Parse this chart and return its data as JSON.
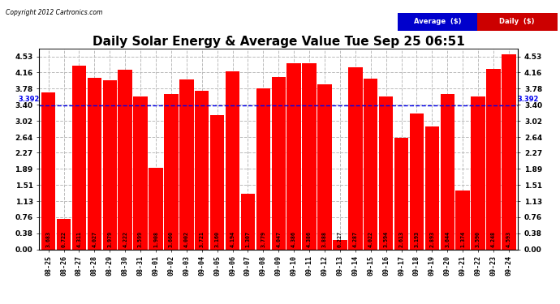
{
  "title": "Daily Solar Energy & Average Value Tue Sep 25 06:51",
  "copyright": "Copyright 2012 Cartronics.com",
  "categories": [
    "08-25",
    "08-26",
    "08-27",
    "08-28",
    "08-29",
    "08-30",
    "08-31",
    "09-01",
    "09-02",
    "09-03",
    "09-04",
    "09-05",
    "09-06",
    "09-07",
    "09-08",
    "09-09",
    "09-10",
    "09-11",
    "09-12",
    "09-13",
    "09-14",
    "09-15",
    "09-16",
    "09-17",
    "09-18",
    "09-19",
    "09-20",
    "09-21",
    "09-22",
    "09-23",
    "09-24"
  ],
  "values": [
    3.683,
    0.722,
    4.311,
    4.027,
    3.979,
    4.222,
    3.599,
    1.908,
    3.66,
    4.002,
    3.721,
    3.16,
    4.194,
    1.307,
    3.779,
    4.047,
    4.386,
    4.386,
    3.888,
    0.227,
    4.287,
    4.022,
    3.594,
    2.613,
    3.193,
    2.893,
    3.644,
    1.374,
    3.59,
    4.248,
    4.593
  ],
  "average": 3.392,
  "bar_color": "#ff0000",
  "average_line_color": "#0000ee",
  "background_color": "#ffffff",
  "grid_color": "#bbbbbb",
  "yticks": [
    0.0,
    0.38,
    0.76,
    1.13,
    1.51,
    1.89,
    2.27,
    2.64,
    3.02,
    3.4,
    3.78,
    4.16,
    4.53
  ],
  "ylim": [
    0,
    4.72
  ],
  "title_fontsize": 11,
  "bar_text_color": "#000000",
  "average_label": "Average  ($)",
  "daily_label": "Daily  ($)",
  "legend_avg_bg": "#0000cc",
  "legend_daily_bg": "#cc0000"
}
